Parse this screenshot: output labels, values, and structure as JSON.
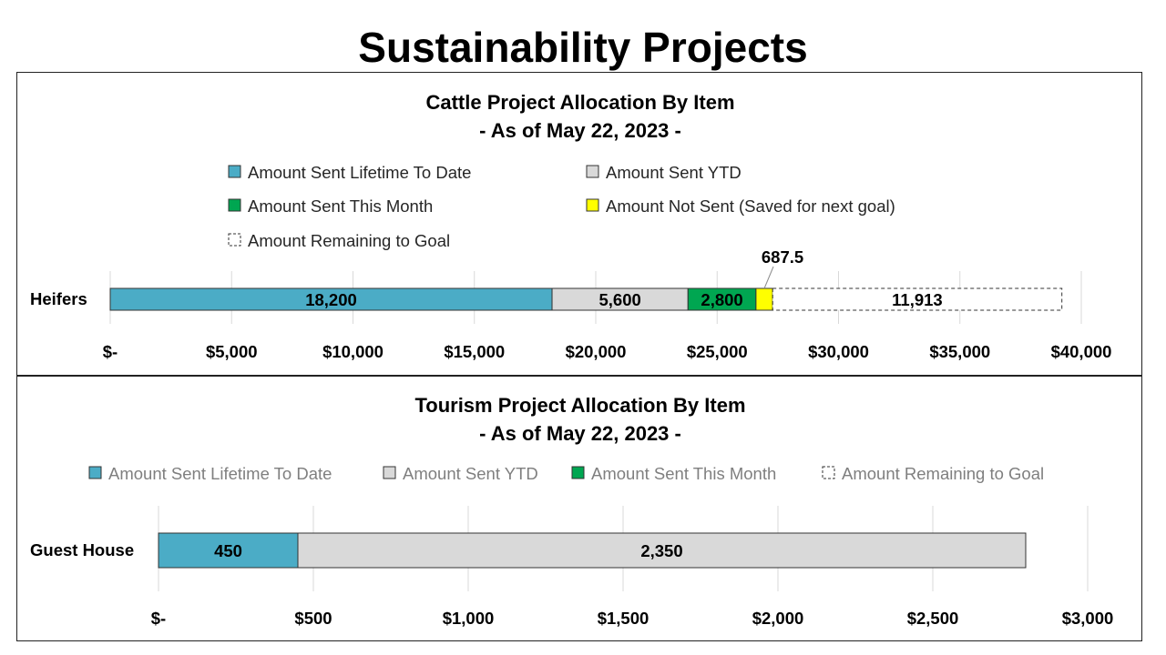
{
  "page": {
    "title": "Sustainability Projects"
  },
  "colors": {
    "lifetime": "#4BACC6",
    "ytd": "#D9D9D9",
    "month": "#00A651",
    "not_sent": "#FFFF00",
    "remaining": "#FFFFFF",
    "gridline": "#D9D9D9",
    "axis_text": "#000000",
    "legend_text_dark": "#262626",
    "legend_text_muted": "#7F7F7F"
  },
  "chart_data": [
    {
      "type": "bar",
      "orientation": "horizontal",
      "stacked": true,
      "title": "Cattle Project Allocation By Item",
      "subtitle": "- As of May 22, 2023 -",
      "categories": [
        "Heifers"
      ],
      "series": [
        {
          "name": "Amount Sent Lifetime To Date",
          "key": "lifetime",
          "values": [
            18200
          ],
          "label": "18,200"
        },
        {
          "name": "Amount Sent YTD",
          "key": "ytd",
          "values": [
            5600
          ],
          "label": "5,600"
        },
        {
          "name": "Amount Sent This Month",
          "key": "month",
          "values": [
            2800
          ],
          "label": "2,800"
        },
        {
          "name": "Amount Not Sent (Saved for next goal)",
          "key": "not_sent",
          "values": [
            687.5
          ],
          "label": "687.5"
        },
        {
          "name": "Amount Remaining to Goal",
          "key": "remaining",
          "values": [
            11913
          ],
          "label": "11,913"
        }
      ],
      "xlim": [
        0,
        40000
      ],
      "ticks": [
        0,
        5000,
        10000,
        15000,
        20000,
        25000,
        30000,
        35000,
        40000
      ],
      "tick_labels": [
        "$-",
        "$5,000",
        "$10,000",
        "$15,000",
        "$20,000",
        "$25,000",
        "$30,000",
        "$35,000",
        "$40,000"
      ],
      "legend_position": "top",
      "grid": true
    },
    {
      "type": "bar",
      "orientation": "horizontal",
      "stacked": true,
      "title": "Tourism Project Allocation By Item",
      "subtitle": "- As of May 22, 2023 -",
      "categories": [
        "Guest House"
      ],
      "series": [
        {
          "name": "Amount Sent Lifetime To Date",
          "key": "lifetime",
          "values": [
            450
          ],
          "label": "450"
        },
        {
          "name": "Amount Sent YTD",
          "key": "ytd",
          "values": [
            2350
          ],
          "label": "2,350"
        },
        {
          "name": "Amount Sent This Month",
          "key": "month",
          "values": [
            0
          ],
          "label": ""
        },
        {
          "name": "Amount Remaining to Goal",
          "key": "remaining",
          "values": [
            0
          ],
          "label": ""
        }
      ],
      "xlim": [
        0,
        3000
      ],
      "ticks": [
        0,
        500,
        1000,
        1500,
        2000,
        2500,
        3000
      ],
      "tick_labels": [
        "$-",
        "$500",
        "$1,000",
        "$1,500",
        "$2,000",
        "$2,500",
        "$3,000"
      ],
      "legend_position": "top",
      "grid": true
    }
  ]
}
